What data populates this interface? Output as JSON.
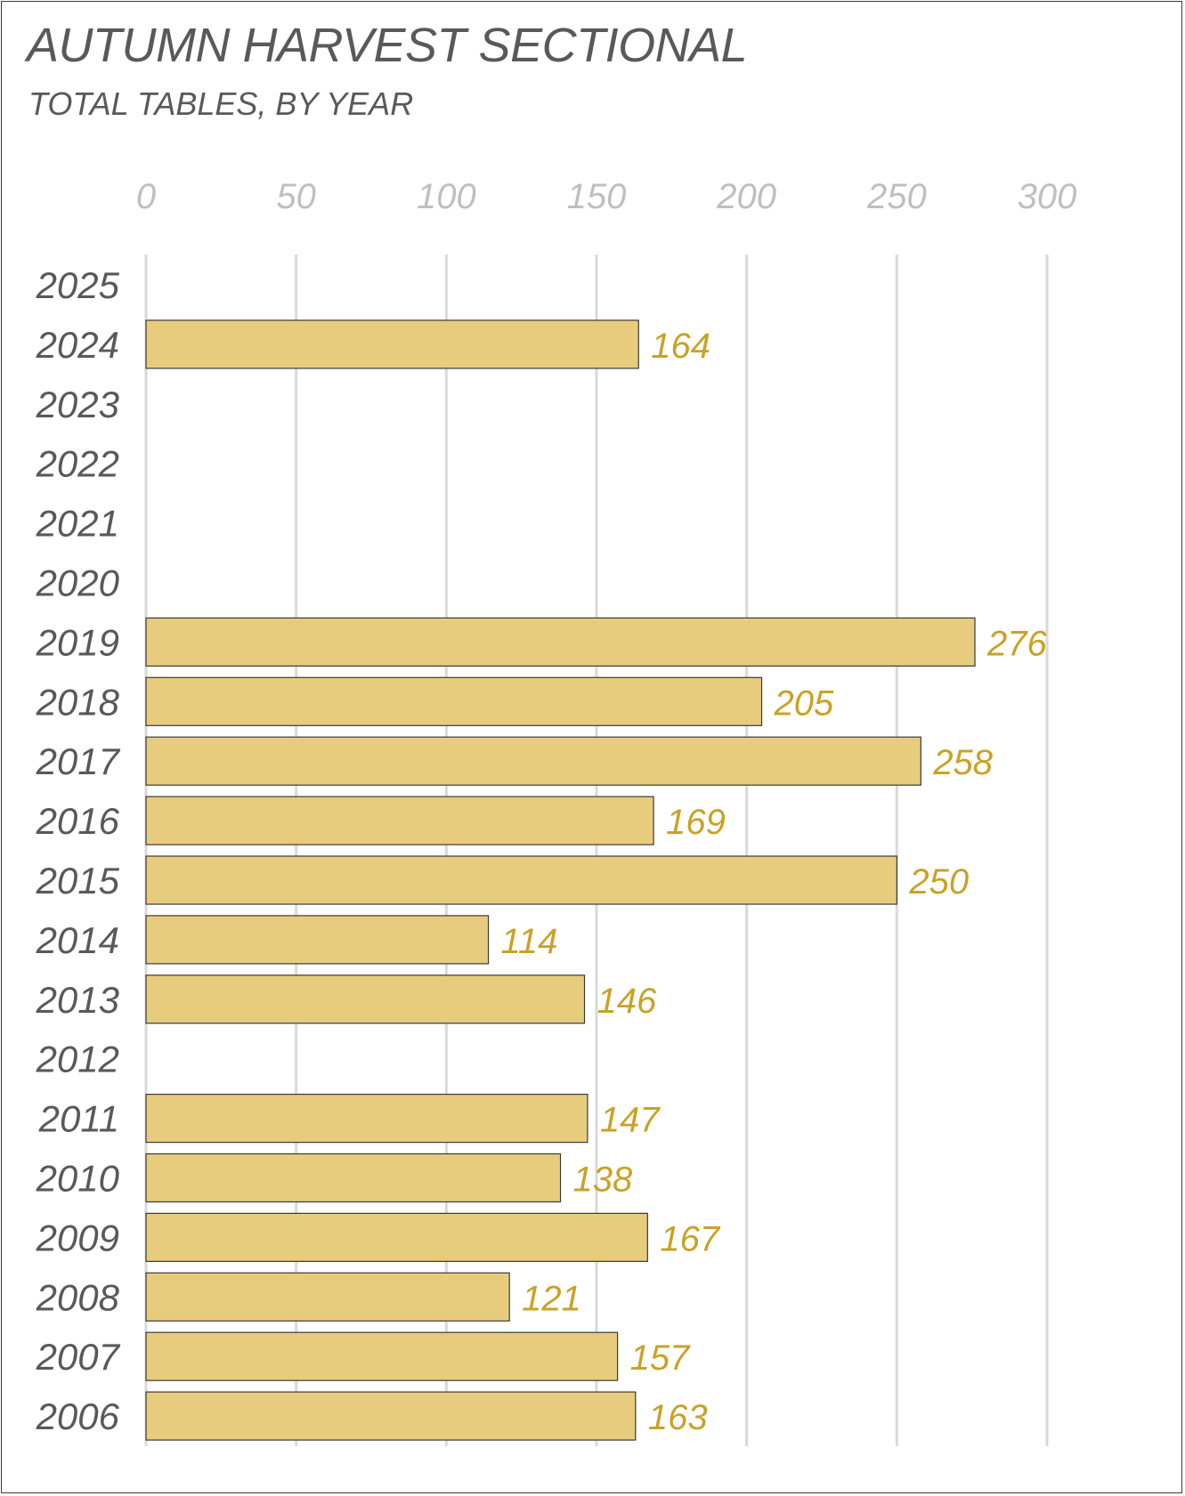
{
  "chart_data": {
    "type": "bar",
    "orientation": "horizontal",
    "title": "AUTUMN HARVEST SECTIONAL",
    "subtitle": "TOTAL TABLES, BY YEAR",
    "xlabel": "",
    "ylabel": "",
    "xlim": [
      0,
      300
    ],
    "ticks": [
      0,
      50,
      100,
      150,
      200,
      250,
      300
    ],
    "tick_position": "top",
    "grid": true,
    "data_labels": true,
    "categories": [
      "2025",
      "2024",
      "2023",
      "2022",
      "2021",
      "2020",
      "2019",
      "2018",
      "2017",
      "2016",
      "2015",
      "2014",
      "2013",
      "2012",
      "2011",
      "2010",
      "2009",
      "2008",
      "2007",
      "2006"
    ],
    "values": [
      null,
      164,
      null,
      null,
      null,
      null,
      276,
      205,
      258,
      169,
      250,
      114,
      146,
      null,
      147,
      138,
      167,
      121,
      157,
      163
    ],
    "colors": {
      "bar_fill": "#e8cc7e",
      "bar_stroke": "#3a3a3a",
      "value_label": "#c9a227",
      "category_label": "#595959",
      "tick_label": "#bfbfbf",
      "gridline": "#d9d9d9"
    }
  }
}
